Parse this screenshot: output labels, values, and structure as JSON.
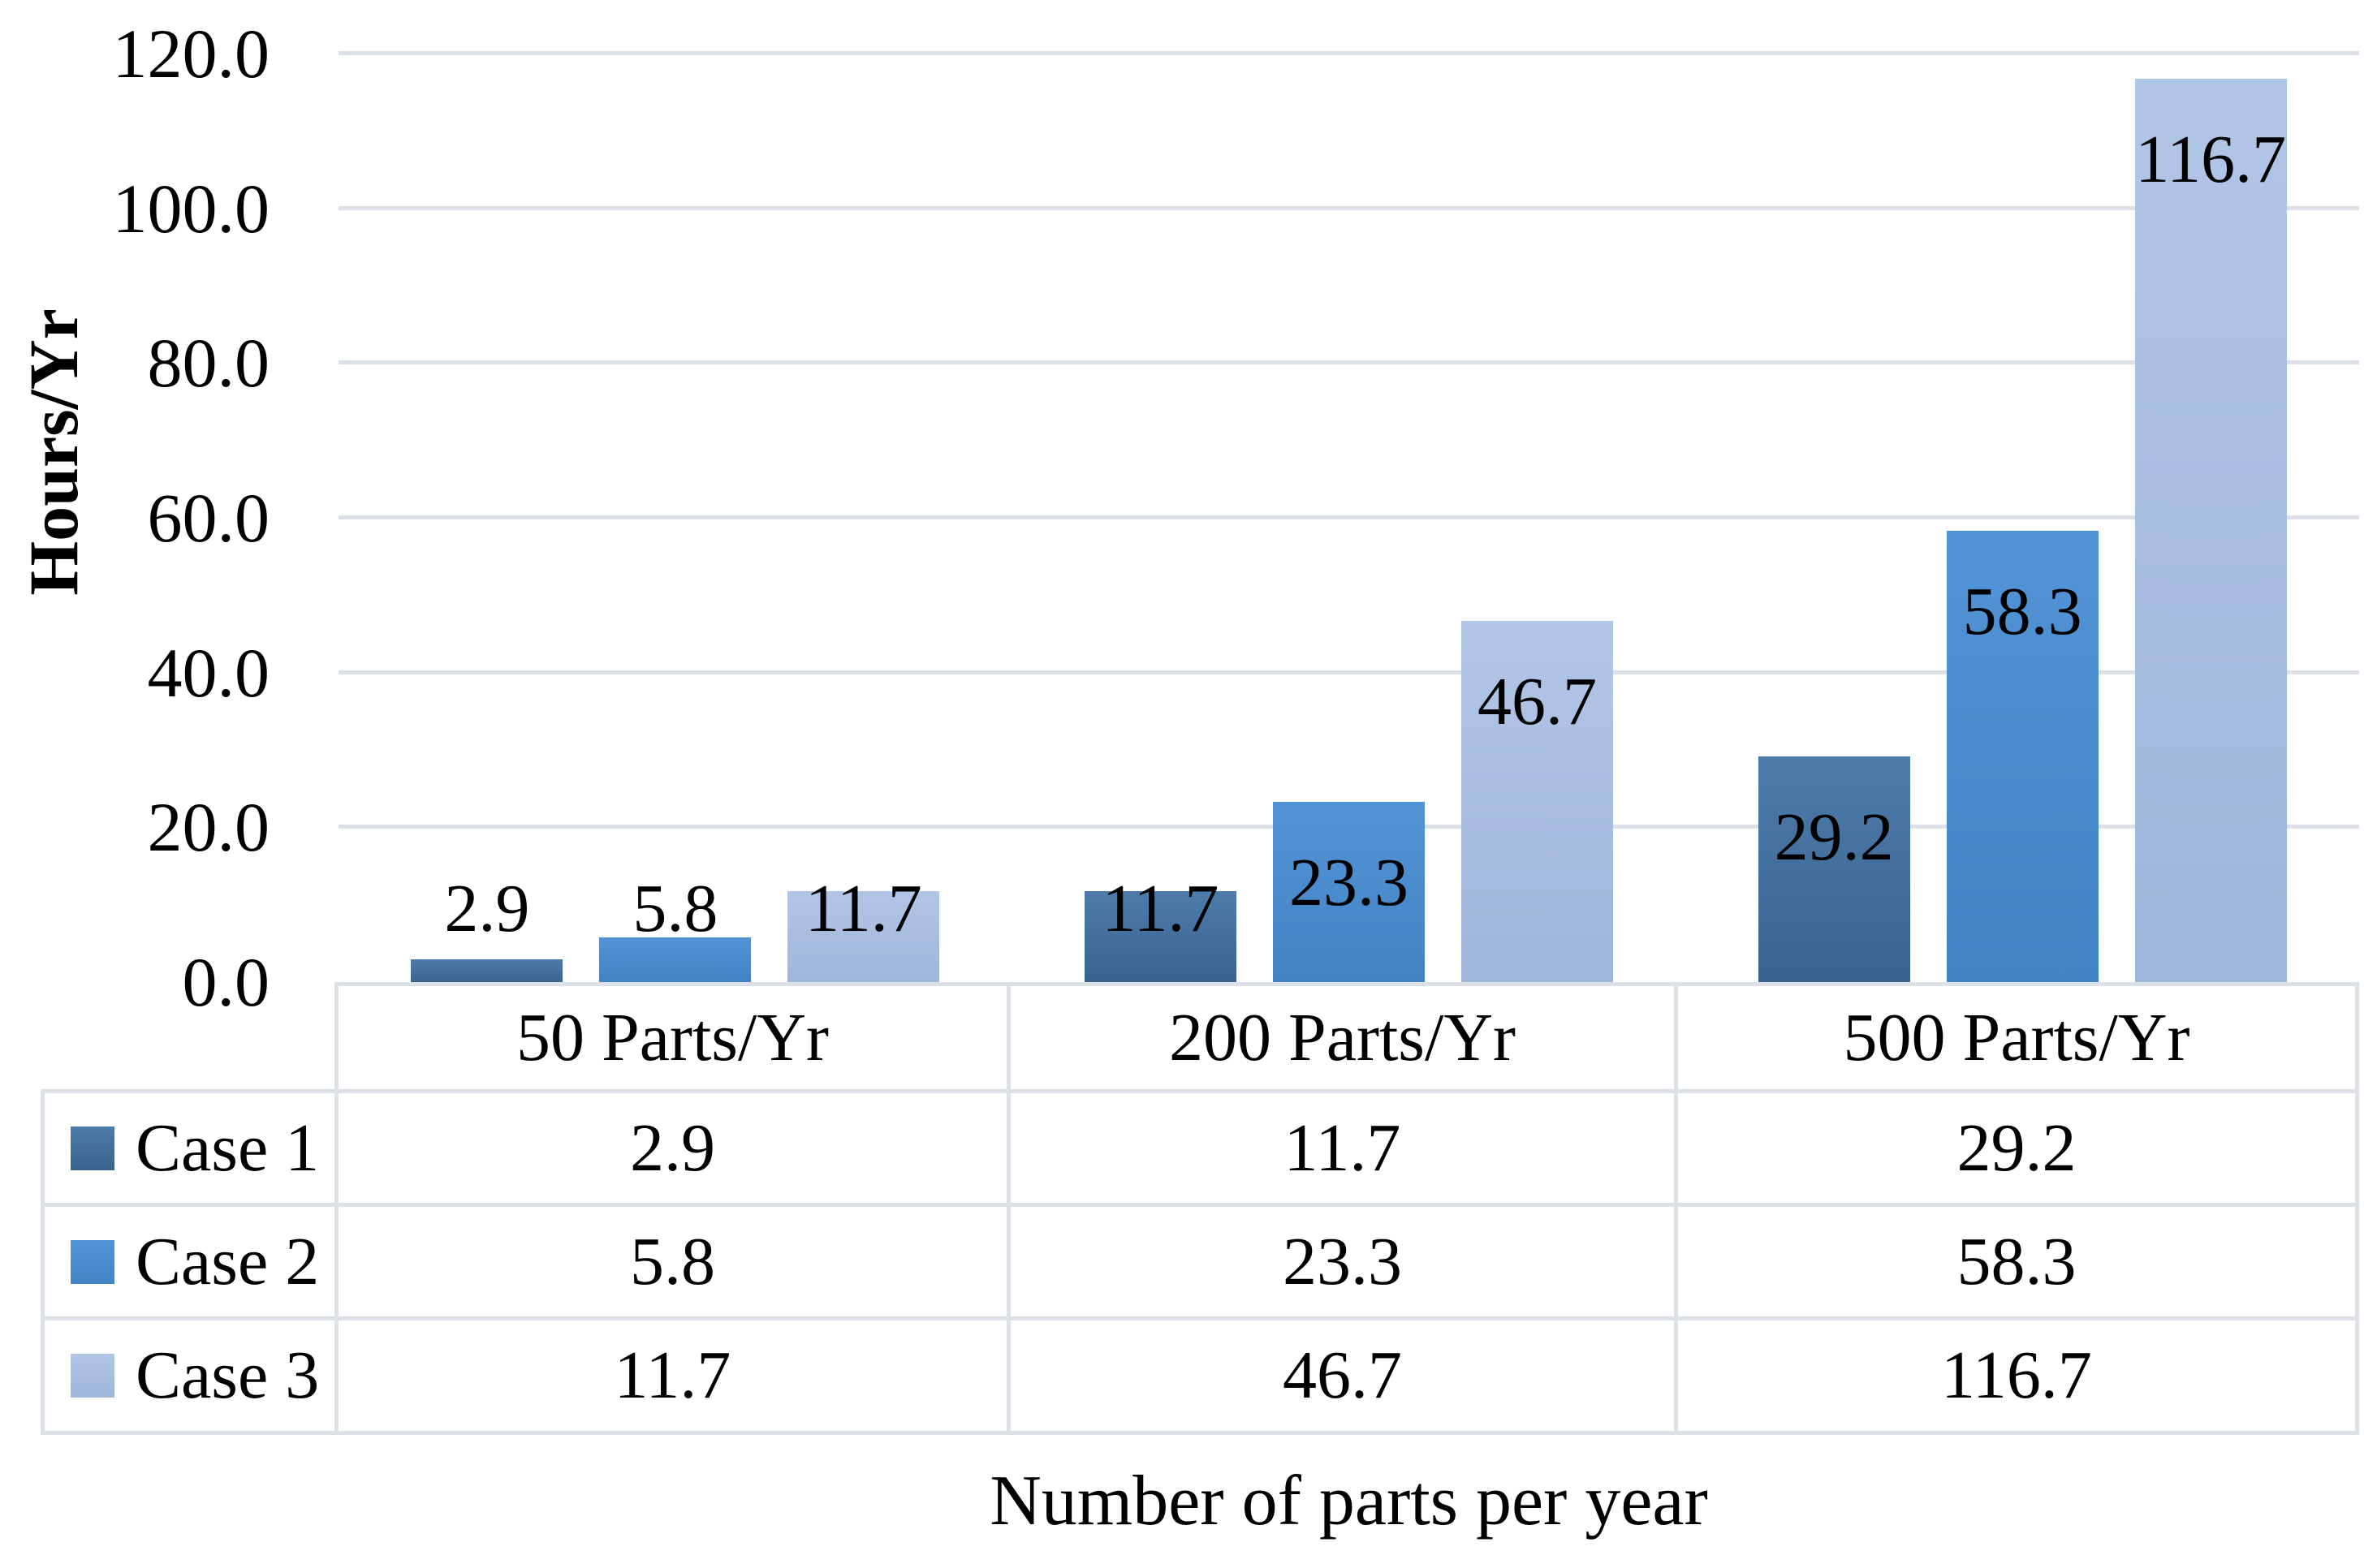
{
  "figure": {
    "y_axis_title": "Hours/Yr",
    "x_axis_title": "Number of parts per year"
  },
  "chart_data": {
    "type": "bar",
    "title": "",
    "categories": [
      "50 Parts/Yr",
      "200 Parts/Yr",
      "500 Parts/Yr"
    ],
    "series": [
      {
        "name": "Case 1",
        "values": [
          2.9,
          11.7,
          29.2
        ],
        "color_top": "#4d7cab",
        "color_bottom": "#3a638f"
      },
      {
        "name": "Case 2",
        "values": [
          5.8,
          23.3,
          58.3
        ],
        "color_top": "#5294d6",
        "color_bottom": "#4283c4"
      },
      {
        "name": "Case 3",
        "values": [
          11.7,
          46.7,
          116.7
        ],
        "color_top": "#b1c5e7",
        "color_bottom": "#9fb6da"
      }
    ],
    "xlabel": "Number of parts per year",
    "ylabel": "Hours/Yr",
    "ylim": [
      0,
      120
    ],
    "ytick_step": 20,
    "ytick_labels": [
      "0.0",
      "20.0",
      "40.0",
      "60.0",
      "80.0",
      "100.0",
      "120.0"
    ],
    "value_decimals": 1,
    "grid": true,
    "data_labels": true,
    "data_table": true,
    "legend_position": "data-table-left"
  },
  "colors": {
    "background": "#ffffff",
    "gridline": "#dce1e8",
    "table_border": "#dce1e8",
    "text": "#000000"
  }
}
